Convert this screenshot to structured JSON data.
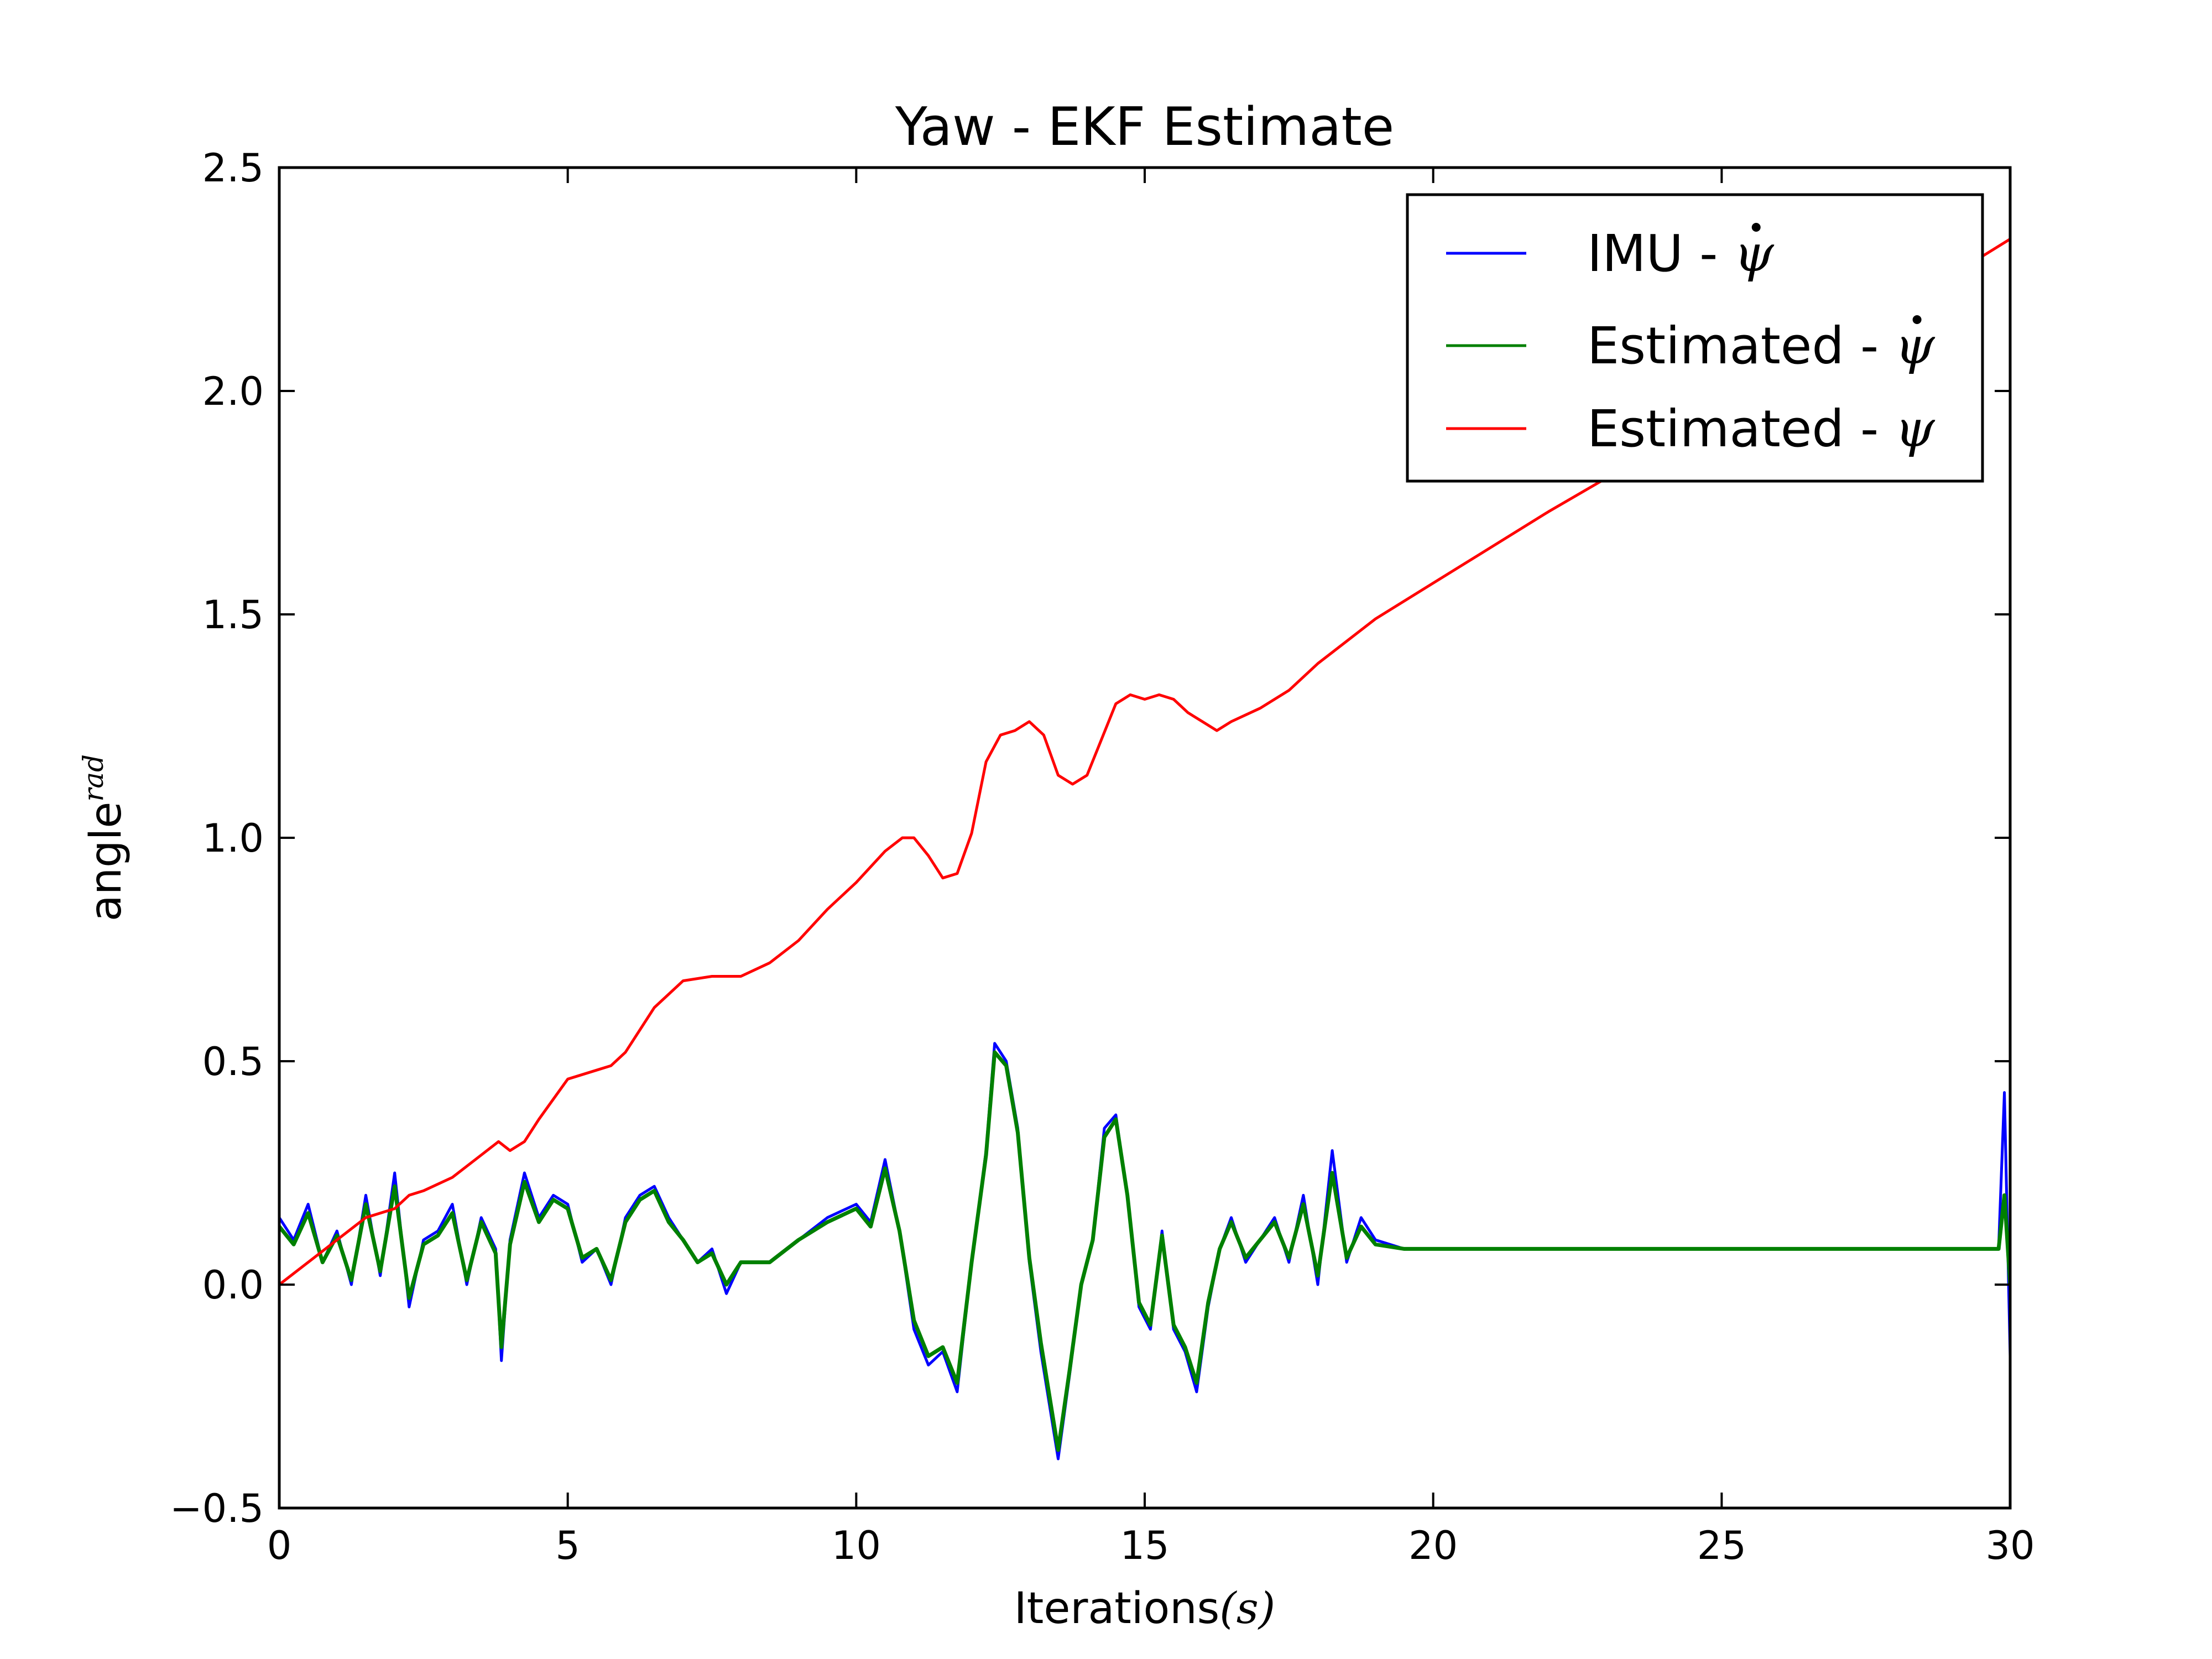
{
  "chart_data": {
    "type": "line",
    "title": "Yaw - EKF Estimate",
    "xlabel": "Iterations",
    "xlabel_math": "(s)",
    "ylabel": "angle",
    "ylabel_math": "rad",
    "xlim": [
      0,
      30
    ],
    "ylim": [
      -0.5,
      2.5
    ],
    "xticks": [
      0,
      5,
      10,
      15,
      20,
      25,
      30
    ],
    "yticks": [
      -0.5,
      0.0,
      0.5,
      1.0,
      1.5,
      2.0,
      2.5
    ],
    "ytick_labels": [
      "−0.5",
      "0.0",
      "0.5",
      "1.0",
      "1.5",
      "2.0",
      "2.5"
    ],
    "grid": false,
    "legend_position": "top-right",
    "series": [
      {
        "name": "IMU - ψ̇",
        "legend_prefix": "IMU - ",
        "legend_symbol": "ψ",
        "legend_dot": true,
        "color": "#0000ff",
        "x": [
          0,
          0.25,
          0.5,
          0.75,
          1.0,
          1.25,
          1.5,
          1.75,
          2.0,
          2.25,
          2.5,
          2.75,
          3.0,
          3.25,
          3.5,
          3.75,
          3.85,
          4.0,
          4.25,
          4.5,
          4.75,
          5.0,
          5.25,
          5.5,
          5.75,
          6.0,
          6.25,
          6.5,
          6.75,
          7.0,
          7.25,
          7.5,
          7.75,
          8.0,
          8.5,
          9.0,
          9.5,
          10.0,
          10.25,
          10.5,
          10.75,
          11.0,
          11.25,
          11.5,
          11.75,
          12.0,
          12.25,
          12.4,
          12.6,
          12.8,
          13.0,
          13.2,
          13.5,
          13.7,
          13.9,
          14.1,
          14.3,
          14.5,
          14.7,
          14.9,
          15.1,
          15.3,
          15.5,
          15.7,
          15.9,
          16.1,
          16.3,
          16.5,
          16.75,
          17.0,
          17.25,
          17.5,
          17.75,
          18.0,
          18.25,
          18.5,
          18.75,
          19.0,
          19.5,
          20.0,
          22.0,
          25.0,
          28.0,
          29.5,
          29.8,
          29.9,
          30.0
        ],
        "y": [
          0.15,
          0.1,
          0.18,
          0.05,
          0.12,
          0.0,
          0.2,
          0.02,
          0.25,
          -0.05,
          0.1,
          0.12,
          0.18,
          0.0,
          0.15,
          0.08,
          -0.17,
          0.1,
          0.25,
          0.15,
          0.2,
          0.18,
          0.05,
          0.08,
          0.0,
          0.15,
          0.2,
          0.22,
          0.15,
          0.1,
          0.05,
          0.08,
          -0.02,
          0.05,
          0.05,
          0.1,
          0.15,
          0.18,
          0.14,
          0.28,
          0.12,
          -0.1,
          -0.18,
          -0.15,
          -0.24,
          0.05,
          0.3,
          0.54,
          0.5,
          0.35,
          0.05,
          -0.15,
          -0.39,
          -0.2,
          0.0,
          0.1,
          0.35,
          0.38,
          0.2,
          -0.05,
          -0.1,
          0.12,
          -0.1,
          -0.15,
          -0.24,
          -0.05,
          0.08,
          0.15,
          0.05,
          0.1,
          0.15,
          0.05,
          0.2,
          0.0,
          0.3,
          0.05,
          0.15,
          0.1,
          0.08,
          0.08,
          0.08,
          0.08,
          0.08,
          0.08,
          0.08,
          0.43,
          -0.16
        ]
      },
      {
        "name": "Estimated - ψ̇",
        "legend_prefix": "Estimated - ",
        "legend_symbol": "ψ",
        "legend_dot": true,
        "color": "#008000",
        "x": [
          0,
          0.25,
          0.5,
          0.75,
          1.0,
          1.25,
          1.5,
          1.75,
          2.0,
          2.25,
          2.5,
          2.75,
          3.0,
          3.25,
          3.5,
          3.75,
          3.85,
          4.0,
          4.25,
          4.5,
          4.75,
          5.0,
          5.25,
          5.5,
          5.75,
          6.0,
          6.25,
          6.5,
          6.75,
          7.0,
          7.25,
          7.5,
          7.75,
          8.0,
          8.5,
          9.0,
          9.5,
          10.0,
          10.25,
          10.5,
          10.75,
          11.0,
          11.25,
          11.5,
          11.75,
          12.0,
          12.25,
          12.4,
          12.6,
          12.8,
          13.0,
          13.2,
          13.5,
          13.7,
          13.9,
          14.1,
          14.3,
          14.5,
          14.7,
          14.9,
          15.1,
          15.3,
          15.5,
          15.7,
          15.9,
          16.1,
          16.3,
          16.5,
          16.75,
          17.0,
          17.25,
          17.5,
          17.75,
          18.0,
          18.25,
          18.5,
          18.75,
          19.0,
          19.5,
          20.0,
          22.0,
          25.0,
          28.0,
          29.5,
          29.8,
          29.9,
          30.0
        ],
        "y": [
          0.13,
          0.09,
          0.16,
          0.05,
          0.11,
          0.01,
          0.18,
          0.03,
          0.22,
          -0.03,
          0.09,
          0.11,
          0.16,
          0.01,
          0.14,
          0.07,
          -0.14,
          0.09,
          0.23,
          0.14,
          0.19,
          0.17,
          0.06,
          0.08,
          0.01,
          0.14,
          0.19,
          0.21,
          0.14,
          0.1,
          0.05,
          0.07,
          0.0,
          0.05,
          0.05,
          0.1,
          0.14,
          0.17,
          0.13,
          0.26,
          0.12,
          -0.08,
          -0.16,
          -0.14,
          -0.22,
          0.05,
          0.29,
          0.52,
          0.49,
          0.34,
          0.06,
          -0.13,
          -0.37,
          -0.19,
          0.0,
          0.1,
          0.33,
          0.37,
          0.2,
          -0.04,
          -0.09,
          0.11,
          -0.09,
          -0.14,
          -0.22,
          -0.04,
          0.08,
          0.14,
          0.06,
          0.1,
          0.14,
          0.06,
          0.18,
          0.02,
          0.25,
          0.06,
          0.13,
          0.09,
          0.08,
          0.08,
          0.08,
          0.08,
          0.08,
          0.08,
          0.08,
          0.2,
          0.0
        ]
      },
      {
        "name": "Estimated - ψ",
        "legend_prefix": "Estimated - ",
        "legend_symbol": "ψ",
        "legend_dot": false,
        "color": "#ff0000",
        "x": [
          0,
          0.5,
          1.0,
          1.5,
          2.0,
          2.25,
          2.5,
          3.0,
          3.5,
          3.8,
          4.0,
          4.25,
          4.5,
          5.0,
          5.5,
          5.75,
          6.0,
          6.5,
          7.0,
          7.5,
          8.0,
          8.5,
          9.0,
          9.5,
          10.0,
          10.5,
          10.8,
          11.0,
          11.25,
          11.5,
          11.75,
          12.0,
          12.25,
          12.5,
          12.75,
          13.0,
          13.25,
          13.5,
          13.75,
          14.0,
          14.25,
          14.5,
          14.75,
          15.0,
          15.25,
          15.5,
          15.75,
          16.0,
          16.25,
          16.5,
          17.0,
          17.5,
          18.0,
          18.5,
          19.0,
          20.0,
          22.0,
          24.0,
          26.0,
          28.0,
          30.0
        ],
        "y": [
          0.0,
          0.05,
          0.1,
          0.15,
          0.17,
          0.2,
          0.21,
          0.24,
          0.29,
          0.32,
          0.3,
          0.32,
          0.37,
          0.46,
          0.48,
          0.49,
          0.52,
          0.62,
          0.68,
          0.69,
          0.69,
          0.72,
          0.77,
          0.84,
          0.9,
          0.97,
          1.0,
          1.0,
          0.96,
          0.91,
          0.92,
          1.01,
          1.17,
          1.23,
          1.24,
          1.26,
          1.23,
          1.14,
          1.12,
          1.14,
          1.22,
          1.3,
          1.32,
          1.31,
          1.32,
          1.31,
          1.28,
          1.26,
          1.24,
          1.26,
          1.29,
          1.33,
          1.39,
          1.44,
          1.49,
          1.57,
          1.73,
          1.88,
          2.03,
          2.18,
          2.34
        ]
      }
    ]
  }
}
